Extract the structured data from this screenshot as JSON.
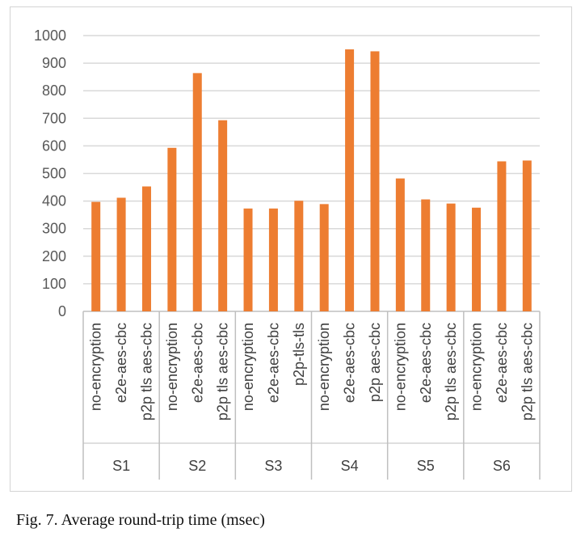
{
  "caption": "Fig. 7. Average round-trip time (msec)",
  "colors": {
    "bar": "#ED7D31",
    "grid": "#d9d9d9",
    "axis": "#bfbfbf"
  },
  "chart_data": {
    "type": "bar",
    "ylim": [
      0,
      1000
    ],
    "yticks": [
      0,
      100,
      200,
      300,
      400,
      500,
      600,
      700,
      800,
      900,
      1000
    ],
    "grid": true,
    "groups": [
      {
        "name": "S1",
        "categories": [
          "no-encryption",
          "e2e-aes-cbc",
          "p2p tls aes-cbc"
        ],
        "values": [
          397,
          412,
          453
        ]
      },
      {
        "name": "S2",
        "categories": [
          "no-encryption",
          "e2e-aes-cbc",
          "p2p tls aes-cbc"
        ],
        "values": [
          593,
          864,
          693
        ]
      },
      {
        "name": "S3",
        "categories": [
          "no-encryption",
          "e2e-aes-cbc",
          "p2p-tls-tls"
        ],
        "values": [
          373,
          373,
          401
        ]
      },
      {
        "name": "S4",
        "categories": [
          "no-encryption",
          "e2e-aes-cbc",
          "p2p aes-cbc"
        ],
        "values": [
          389,
          950,
          943
        ]
      },
      {
        "name": "S5",
        "categories": [
          "no-encryption",
          "e2e-aes-cbc",
          "p2p tls aes-cbc"
        ],
        "values": [
          482,
          406,
          391
        ]
      },
      {
        "name": "S6",
        "categories": [
          "no-encryption",
          "e2e-aes-cbc",
          "p2p tls aes-cbc"
        ],
        "values": [
          376,
          544,
          547
        ]
      }
    ]
  }
}
